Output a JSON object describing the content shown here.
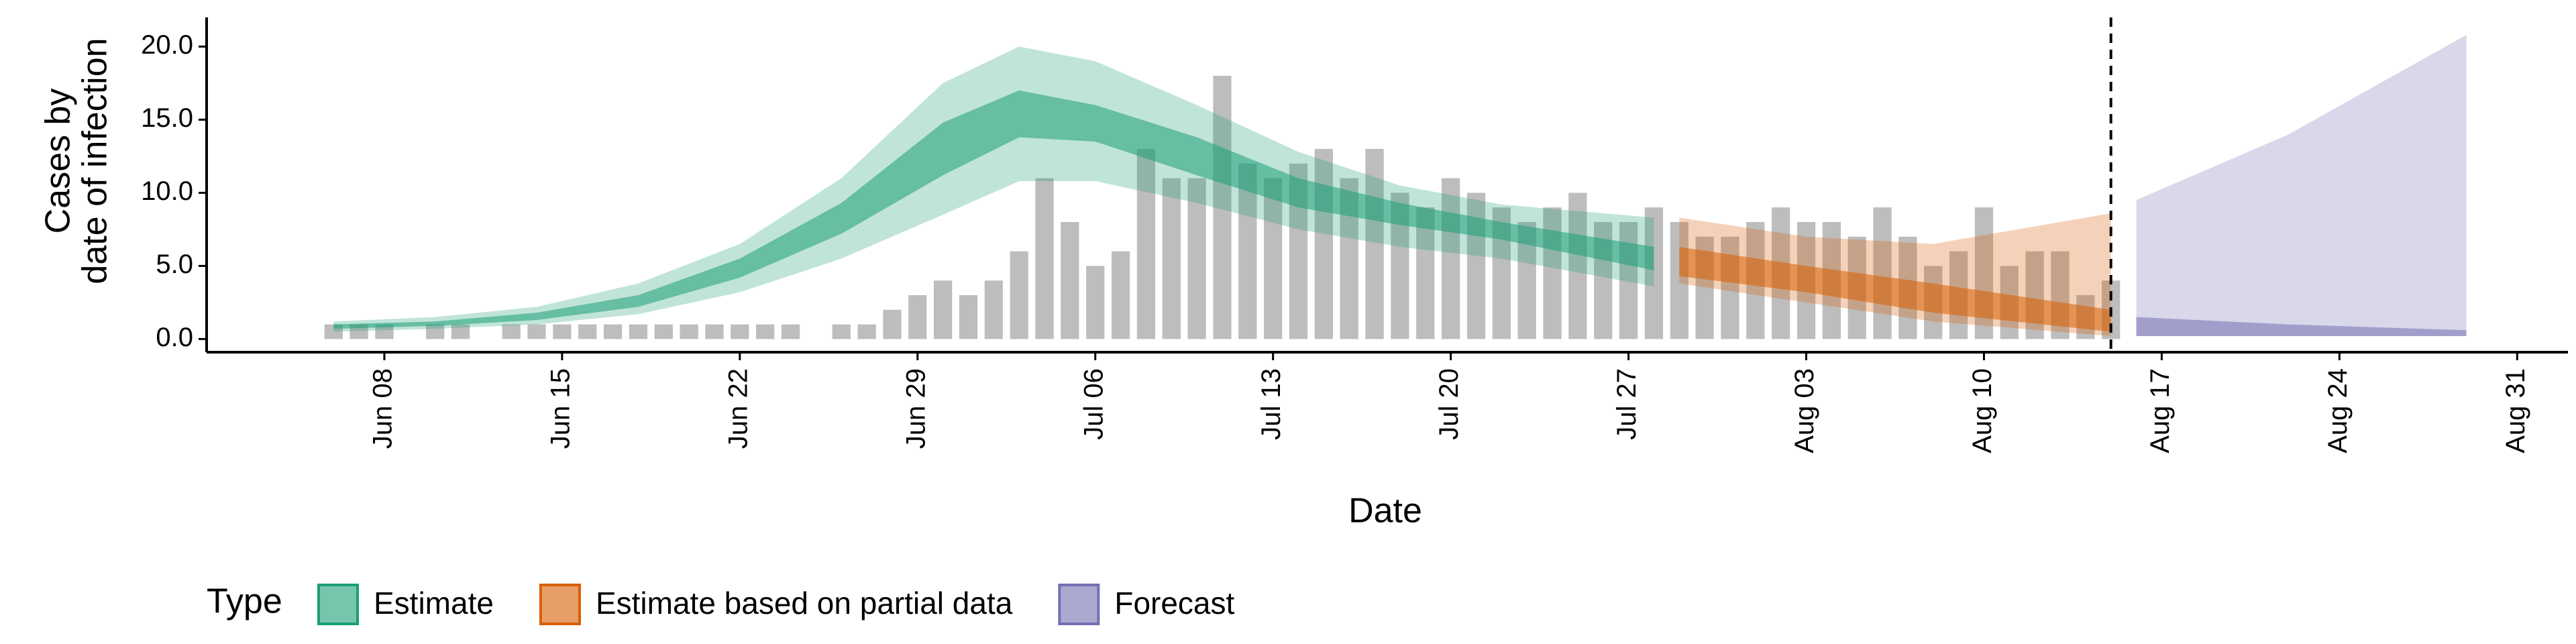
{
  "chart_data": {
    "type": "epi-estimate",
    "x_label": "Date",
    "y_label": [
      "Cases by",
      "date of infection"
    ],
    "xlim": [
      "Jun 01",
      "Sep 02"
    ],
    "xticks": [
      "Jun 08",
      "Jun 15",
      "Jun 22",
      "Jun 29",
      "Jul 06",
      "Jul 13",
      "Jul 20",
      "Jul 27",
      "Aug 03",
      "Aug 10",
      "Aug 17",
      "Aug 24",
      "Aug 31"
    ],
    "ylim": [
      -0.9,
      21.9
    ],
    "yticks": [
      {
        "value": 0,
        "label": "0.0"
      },
      {
        "value": 5,
        "label": "5.0"
      },
      {
        "value": 10,
        "label": "10.0"
      },
      {
        "value": 15,
        "label": "15.0"
      },
      {
        "value": 20,
        "label": "20.0"
      }
    ],
    "vline": "Aug 15",
    "legend_title": "Type",
    "bars": {
      "color": "#bdbdbd",
      "x": [
        "Jun 06",
        "Jun 07",
        "Jun 08",
        "Jun 09",
        "Jun 10",
        "Jun 11",
        "Jun 12",
        "Jun 13",
        "Jun 14",
        "Jun 15",
        "Jun 16",
        "Jun 17",
        "Jun 18",
        "Jun 19",
        "Jun 20",
        "Jun 21",
        "Jun 22",
        "Jun 23",
        "Jun 24",
        "Jun 25",
        "Jun 26",
        "Jun 27",
        "Jun 28",
        "Jun 29",
        "Jun 30",
        "Jul 01",
        "Jul 02",
        "Jul 03",
        "Jul 04",
        "Jul 05",
        "Jul 06",
        "Jul 07",
        "Jul 08",
        "Jul 09",
        "Jul 10",
        "Jul 11",
        "Jul 12",
        "Jul 13",
        "Jul 14",
        "Jul 15",
        "Jul 16",
        "Jul 17",
        "Jul 18",
        "Jul 19",
        "Jul 20",
        "Jul 21",
        "Jul 22",
        "Jul 23",
        "Jul 24",
        "Jul 25",
        "Jul 26",
        "Jul 27",
        "Jul 28",
        "Jul 29",
        "Jul 30",
        "Jul 31",
        "Aug 01",
        "Aug 02",
        "Aug 03",
        "Aug 04",
        "Aug 05",
        "Aug 06",
        "Aug 07",
        "Aug 08",
        "Aug 09",
        "Aug 10",
        "Aug 11",
        "Aug 12",
        "Aug 13",
        "Aug 14",
        "Aug 15"
      ],
      "values": [
        1,
        1,
        1,
        0,
        1,
        1,
        0,
        1,
        1,
        1,
        1,
        1,
        1,
        1,
        1,
        1,
        1,
        1,
        1,
        0,
        1,
        1,
        2,
        3,
        4,
        3,
        4,
        6,
        11,
        8,
        5,
        6,
        13,
        11,
        11,
        18,
        12,
        11,
        12,
        13,
        11,
        13,
        10,
        9,
        11,
        10,
        9,
        8,
        9,
        10,
        8,
        8,
        9,
        8,
        7,
        7,
        8,
        9,
        8,
        8,
        7,
        9,
        7,
        5,
        6,
        9,
        5,
        6,
        6,
        3,
        4
      ]
    },
    "series": [
      {
        "name": "Estimate",
        "color": "#1b9e77",
        "x": [
          "Jun 06",
          "Jun 10",
          "Jun 14",
          "Jun 18",
          "Jun 22",
          "Jun 26",
          "Jun 30",
          "Jul 03",
          "Jul 06",
          "Jul 10",
          "Jul 14",
          "Jul 18",
          "Jul 22",
          "Jul 28"
        ],
        "lower_90": [
          0.5,
          0.7,
          1.0,
          1.7,
          3.2,
          5.5,
          8.5,
          10.8,
          10.8,
          9.3,
          7.5,
          6.3,
          5.5,
          3.6
        ],
        "upper_90": [
          1.2,
          1.5,
          2.2,
          3.8,
          6.5,
          11,
          17.5,
          20,
          19,
          16,
          12.8,
          10.5,
          9.2,
          8.3
        ],
        "lower_50": [
          0.7,
          0.9,
          1.3,
          2.2,
          4.2,
          7.2,
          11.2,
          13.8,
          13.5,
          11.2,
          9,
          7.8,
          6.8,
          4.7
        ],
        "upper_50": [
          1.0,
          1.2,
          1.8,
          3.0,
          5.5,
          9.3,
          14.8,
          17,
          16,
          13.8,
          11,
          9.3,
          8.0,
          6.3
        ]
      },
      {
        "name": "Estimate based on partial data",
        "color": "#d95f02",
        "x": [
          "Jul 29",
          "Aug 03",
          "Aug 08",
          "Aug 15"
        ],
        "lower_90": [
          3.8,
          2.5,
          1.2,
          0.2
        ],
        "upper_90": [
          8.3,
          7,
          6.5,
          8.6
        ],
        "lower_50": [
          4.3,
          3.2,
          1.8,
          0.5
        ],
        "upper_50": [
          6.3,
          5,
          3.8,
          2.0
        ]
      },
      {
        "name": "Forecast",
        "color": "#7570b3",
        "x": [
          "Aug 16",
          "Aug 22",
          "Aug 29"
        ],
        "lower_90": [
          0.2,
          0.2,
          0.2
        ],
        "upper_90": [
          9.5,
          14,
          20.8
        ],
        "lower_50": [
          0.2,
          0.2,
          0.2
        ],
        "upper_50": [
          1.5,
          1.0,
          0.6
        ]
      }
    ]
  }
}
